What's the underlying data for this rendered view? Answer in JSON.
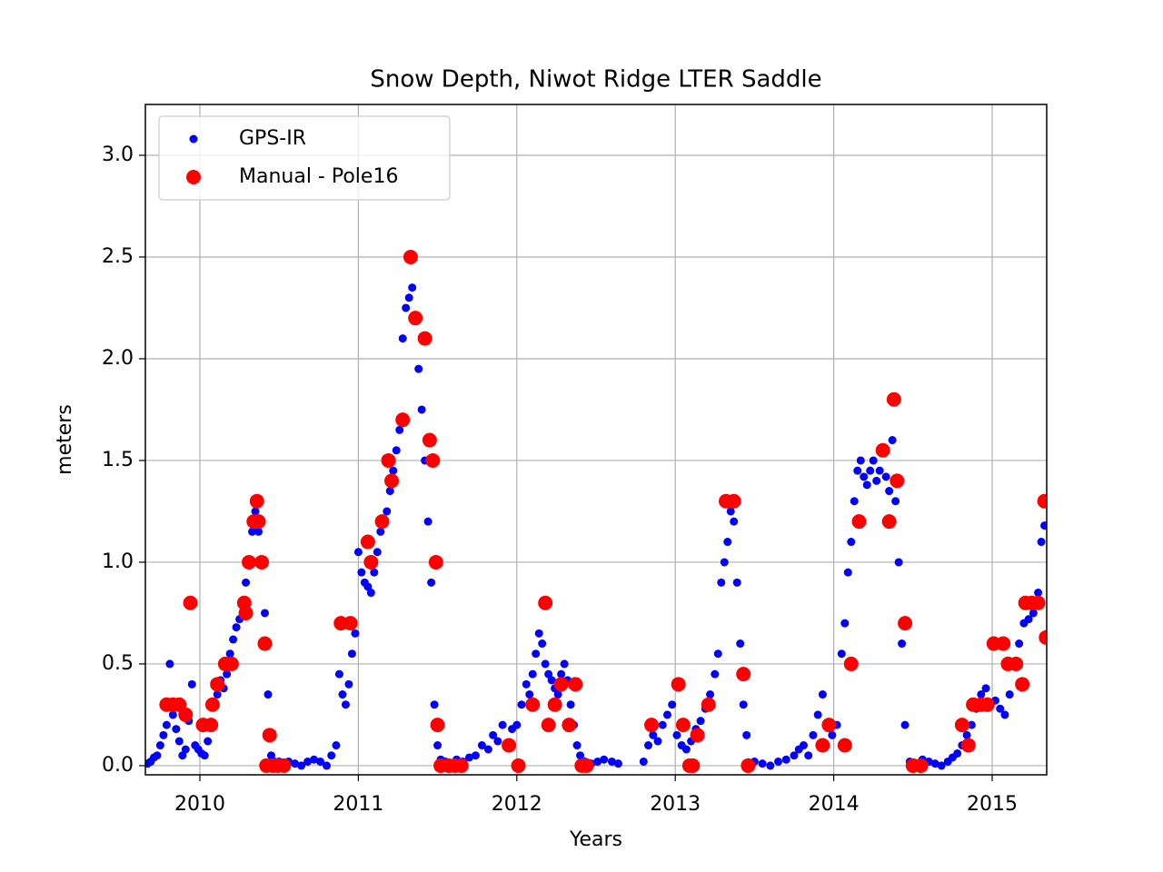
{
  "chart_data": {
    "type": "scatter",
    "title": "Snow Depth, Niwot Ridge LTER Saddle",
    "x_label": "Years",
    "y_label": "meters",
    "xlim": [
      2009.656,
      2015.344
    ],
    "ylim": [
      -0.045,
      3.25
    ],
    "xticks": [
      2010,
      2011,
      2012,
      2013,
      2014,
      2015
    ],
    "yticks": [
      {
        "value": 0,
        "label": "0.0"
      },
      0.5,
      {
        "value": 1,
        "label": "1.0"
      },
      1.5,
      {
        "value": 2,
        "label": "2.0"
      },
      2.5,
      {
        "value": 3,
        "label": "3.0"
      }
    ],
    "grid": true,
    "legend": "upper left",
    "series": [
      {
        "name": "GPS-IR",
        "color": "blue",
        "x": [
          2009.67,
          2009.69,
          2009.71,
          2009.73,
          2009.75,
          2009.77,
          2009.79,
          2009.81,
          2009.83,
          2009.85,
          2009.87,
          2009.89,
          2009.91,
          2009.93,
          2009.95,
          2009.97,
          2009.99,
          2010.01,
          2010.03,
          2010.05,
          2010.07,
          2010.09,
          2010.11,
          2010.13,
          2010.15,
          2010.17,
          2010.19,
          2010.21,
          2010.23,
          2010.25,
          2010.27,
          2010.29,
          2010.31,
          2010.33,
          2010.35,
          2010.37,
          2010.39,
          2010.41,
          2010.43,
          2010.45,
          2010.47,
          2010.5,
          2010.53,
          2010.56,
          2010.6,
          2010.64,
          2010.68,
          2010.72,
          2010.76,
          2010.8,
          2010.83,
          2010.86,
          2010.88,
          2010.9,
          2010.92,
          2010.94,
          2010.96,
          2010.98,
          2011.0,
          2011.02,
          2011.04,
          2011.06,
          2011.08,
          2011.1,
          2011.12,
          2011.14,
          2011.16,
          2011.18,
          2011.2,
          2011.22,
          2011.24,
          2011.26,
          2011.28,
          2011.3,
          2011.32,
          2011.34,
          2011.36,
          2011.38,
          2011.4,
          2011.42,
          2011.44,
          2011.46,
          2011.48,
          2011.5,
          2011.52,
          2011.55,
          2011.58,
          2011.62,
          2011.66,
          2011.7,
          2011.74,
          2011.78,
          2011.82,
          2011.85,
          2011.88,
          2011.91,
          2011.94,
          2011.97,
          2012.0,
          2012.03,
          2012.06,
          2012.08,
          2012.1,
          2012.12,
          2012.14,
          2012.16,
          2012.18,
          2012.2,
          2012.22,
          2012.24,
          2012.26,
          2012.28,
          2012.3,
          2012.32,
          2012.34,
          2012.36,
          2012.38,
          2012.4,
          2012.43,
          2012.47,
          2012.51,
          2012.55,
          2012.6,
          2012.64,
          2012.8,
          2012.83,
          2012.86,
          2012.89,
          2012.92,
          2012.95,
          2012.98,
          2013.01,
          2013.04,
          2013.07,
          2013.1,
          2013.13,
          2013.16,
          2013.19,
          2013.22,
          2013.25,
          2013.27,
          2013.29,
          2013.31,
          2013.33,
          2013.35,
          2013.37,
          2013.39,
          2013.41,
          2013.43,
          2013.45,
          2013.5,
          2013.55,
          2013.6,
          2013.65,
          2013.7,
          2013.75,
          2013.78,
          2013.81,
          2013.84,
          2013.87,
          2013.9,
          2013.93,
          2013.96,
          2013.99,
          2014.02,
          2014.05,
          2014.07,
          2014.09,
          2014.11,
          2014.13,
          2014.15,
          2014.17,
          2014.19,
          2014.21,
          2014.23,
          2014.25,
          2014.27,
          2014.29,
          2014.31,
          2014.33,
          2014.35,
          2014.37,
          2014.39,
          2014.41,
          2014.43,
          2014.45,
          2014.48,
          2014.52,
          2014.56,
          2014.6,
          2014.64,
          2014.68,
          2014.72,
          2014.75,
          2014.78,
          2014.81,
          2014.84,
          2014.87,
          2014.9,
          2014.93,
          2014.96,
          2014.99,
          2015.02,
          2015.05,
          2015.08,
          2015.11,
          2015.14,
          2015.17,
          2015.2,
          2015.23,
          2015.26,
          2015.29,
          2015.31,
          2015.33
        ],
        "values": [
          0.01,
          0.02,
          0.04,
          0.05,
          0.1,
          0.15,
          0.2,
          0.5,
          0.25,
          0.18,
          0.12,
          0.05,
          0.08,
          0.22,
          0.4,
          0.1,
          0.08,
          0.06,
          0.05,
          0.12,
          0.2,
          0.3,
          0.35,
          0.42,
          0.38,
          0.45,
          0.55,
          0.62,
          0.68,
          0.72,
          0.8,
          0.9,
          1.0,
          1.15,
          1.25,
          1.15,
          1.0,
          0.75,
          0.35,
          0.05,
          0.02,
          0.02,
          0.01,
          0.02,
          0.01,
          0.0,
          0.02,
          0.03,
          0.02,
          0.0,
          0.05,
          0.1,
          0.45,
          0.35,
          0.3,
          0.4,
          0.55,
          0.65,
          1.05,
          0.95,
          0.9,
          0.88,
          0.85,
          0.95,
          1.05,
          1.15,
          1.2,
          1.25,
          1.35,
          1.45,
          1.55,
          1.65,
          2.1,
          2.25,
          2.3,
          2.35,
          2.2,
          1.95,
          1.75,
          1.5,
          1.2,
          0.9,
          0.3,
          0.1,
          0.03,
          0.02,
          0.01,
          0.03,
          0.02,
          0.04,
          0.05,
          0.1,
          0.08,
          0.15,
          0.12,
          0.2,
          0.1,
          0.18,
          0.2,
          0.3,
          0.4,
          0.35,
          0.45,
          0.55,
          0.65,
          0.6,
          0.5,
          0.45,
          0.42,
          0.38,
          0.35,
          0.45,
          0.5,
          0.42,
          0.3,
          0.2,
          0.1,
          0.05,
          0.02,
          0.01,
          0.02,
          0.03,
          0.02,
          0.01,
          0.02,
          0.1,
          0.15,
          0.12,
          0.2,
          0.25,
          0.3,
          0.15,
          0.1,
          0.08,
          0.12,
          0.18,
          0.22,
          0.28,
          0.35,
          0.45,
          0.55,
          0.9,
          1.0,
          1.1,
          1.25,
          1.2,
          0.9,
          0.6,
          0.3,
          0.15,
          0.02,
          0.01,
          0.0,
          0.02,
          0.03,
          0.05,
          0.08,
          0.1,
          0.05,
          0.15,
          0.25,
          0.35,
          0.2,
          0.15,
          0.2,
          0.55,
          0.7,
          0.95,
          1.1,
          1.3,
          1.45,
          1.5,
          1.42,
          1.38,
          1.45,
          1.5,
          1.4,
          1.45,
          1.55,
          1.42,
          1.35,
          1.6,
          1.3,
          1.0,
          0.6,
          0.2,
          0.02,
          0.01,
          0.03,
          0.02,
          0.01,
          0.0,
          0.02,
          0.04,
          0.06,
          0.1,
          0.15,
          0.2,
          0.28,
          0.35,
          0.38,
          0.3,
          0.32,
          0.28,
          0.25,
          0.35,
          0.5,
          0.6,
          0.7,
          0.72,
          0.75,
          0.85,
          1.1,
          1.18
        ]
      },
      {
        "name": "Manual - Pole16",
        "color": "red",
        "x": [
          2009.79,
          2009.83,
          2009.87,
          2009.91,
          2009.94,
          2010.02,
          2010.07,
          2010.08,
          2010.11,
          2010.16,
          2010.2,
          2010.28,
          2010.29,
          2010.31,
          2010.34,
          2010.36,
          2010.37,
          2010.39,
          2010.41,
          2010.44,
          2010.42,
          2010.46,
          2010.49,
          2010.53,
          2010.89,
          2010.95,
          2011.06,
          2011.08,
          2011.15,
          2011.19,
          2011.21,
          2011.28,
          2011.33,
          2011.36,
          2011.42,
          2011.45,
          2011.47,
          2011.49,
          2011.5,
          2011.52,
          2011.57,
          2011.61,
          2011.65,
          2011.95,
          2012.01,
          2012.1,
          2012.18,
          2012.2,
          2012.24,
          2012.28,
          2012.33,
          2012.37,
          2012.41,
          2012.44,
          2012.85,
          2013.02,
          2013.05,
          2013.09,
          2013.11,
          2013.14,
          2013.21,
          2013.32,
          2013.37,
          2013.43,
          2013.46,
          2013.93,
          2013.97,
          2014.07,
          2014.11,
          2014.16,
          2014.31,
          2014.35,
          2014.38,
          2014.4,
          2014.45,
          2014.5,
          2014.55,
          2014.81,
          2014.85,
          2014.88,
          2014.93,
          2014.97,
          2015.01,
          2015.07,
          2015.1,
          2015.15,
          2015.19,
          2015.21,
          2015.25,
          2015.29,
          2015.33,
          2015.34
        ],
        "values": [
          0.3,
          0.3,
          0.3,
          0.25,
          0.8,
          0.2,
          0.2,
          0.3,
          0.4,
          0.5,
          0.5,
          0.8,
          0.75,
          1.0,
          1.2,
          1.3,
          1.2,
          1.0,
          0.6,
          0.15,
          0,
          0,
          0,
          0,
          0.7,
          0.7,
          1.1,
          1.0,
          1.2,
          1.5,
          1.4,
          1.7,
          2.5,
          2.2,
          2.1,
          1.6,
          1.5,
          1.0,
          0.2,
          0,
          0,
          0,
          0,
          0.1,
          0,
          0.3,
          0.8,
          0.2,
          0.3,
          0.4,
          0.2,
          0.4,
          0,
          0,
          0.2,
          0.4,
          0.2,
          0,
          0,
          0.15,
          0.3,
          1.3,
          1.3,
          0.45,
          0,
          0.1,
          0.2,
          0.1,
          0.5,
          1.2,
          1.55,
          1.2,
          1.8,
          1.4,
          0.7,
          0,
          0,
          0.2,
          0.1,
          0.3,
          0.3,
          0.3,
          0.6,
          0.6,
          0.5,
          0.5,
          0.4,
          0.8,
          0.8,
          0.8,
          1.3,
          0.63
        ]
      }
    ]
  }
}
